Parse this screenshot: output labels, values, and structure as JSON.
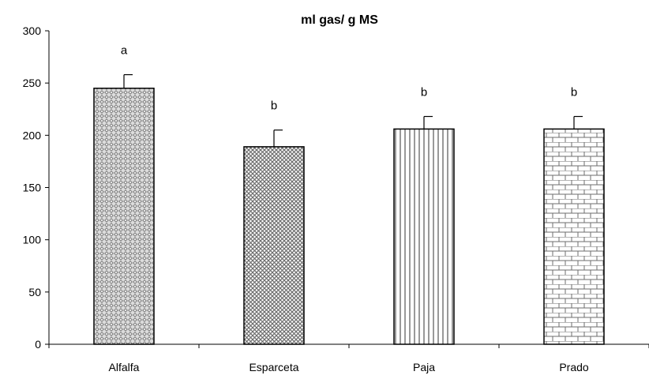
{
  "chart_data": {
    "type": "bar",
    "title": "ml gas/ g MS",
    "xlabel": "",
    "ylabel": "",
    "ylim": [
      0,
      300
    ],
    "yticks": [
      0,
      50,
      100,
      150,
      200,
      250,
      300
    ],
    "categories": [
      "Alfalfa",
      "Esparceta",
      "Paja",
      "Prado"
    ],
    "values": [
      245,
      189,
      206,
      206
    ],
    "error_bars": [
      13,
      16,
      12,
      12
    ],
    "significance_letters": [
      "a",
      "b",
      "b",
      "b"
    ],
    "patterns": [
      "diamond-dots",
      "crosshatch",
      "vertical-lines",
      "brick"
    ],
    "colors": {
      "bar_fill": "#ffffff",
      "pattern_stroke": "#6e6e6e",
      "outline": "#000000",
      "error_bar": "#000000"
    },
    "grid": false,
    "legend": "none"
  }
}
